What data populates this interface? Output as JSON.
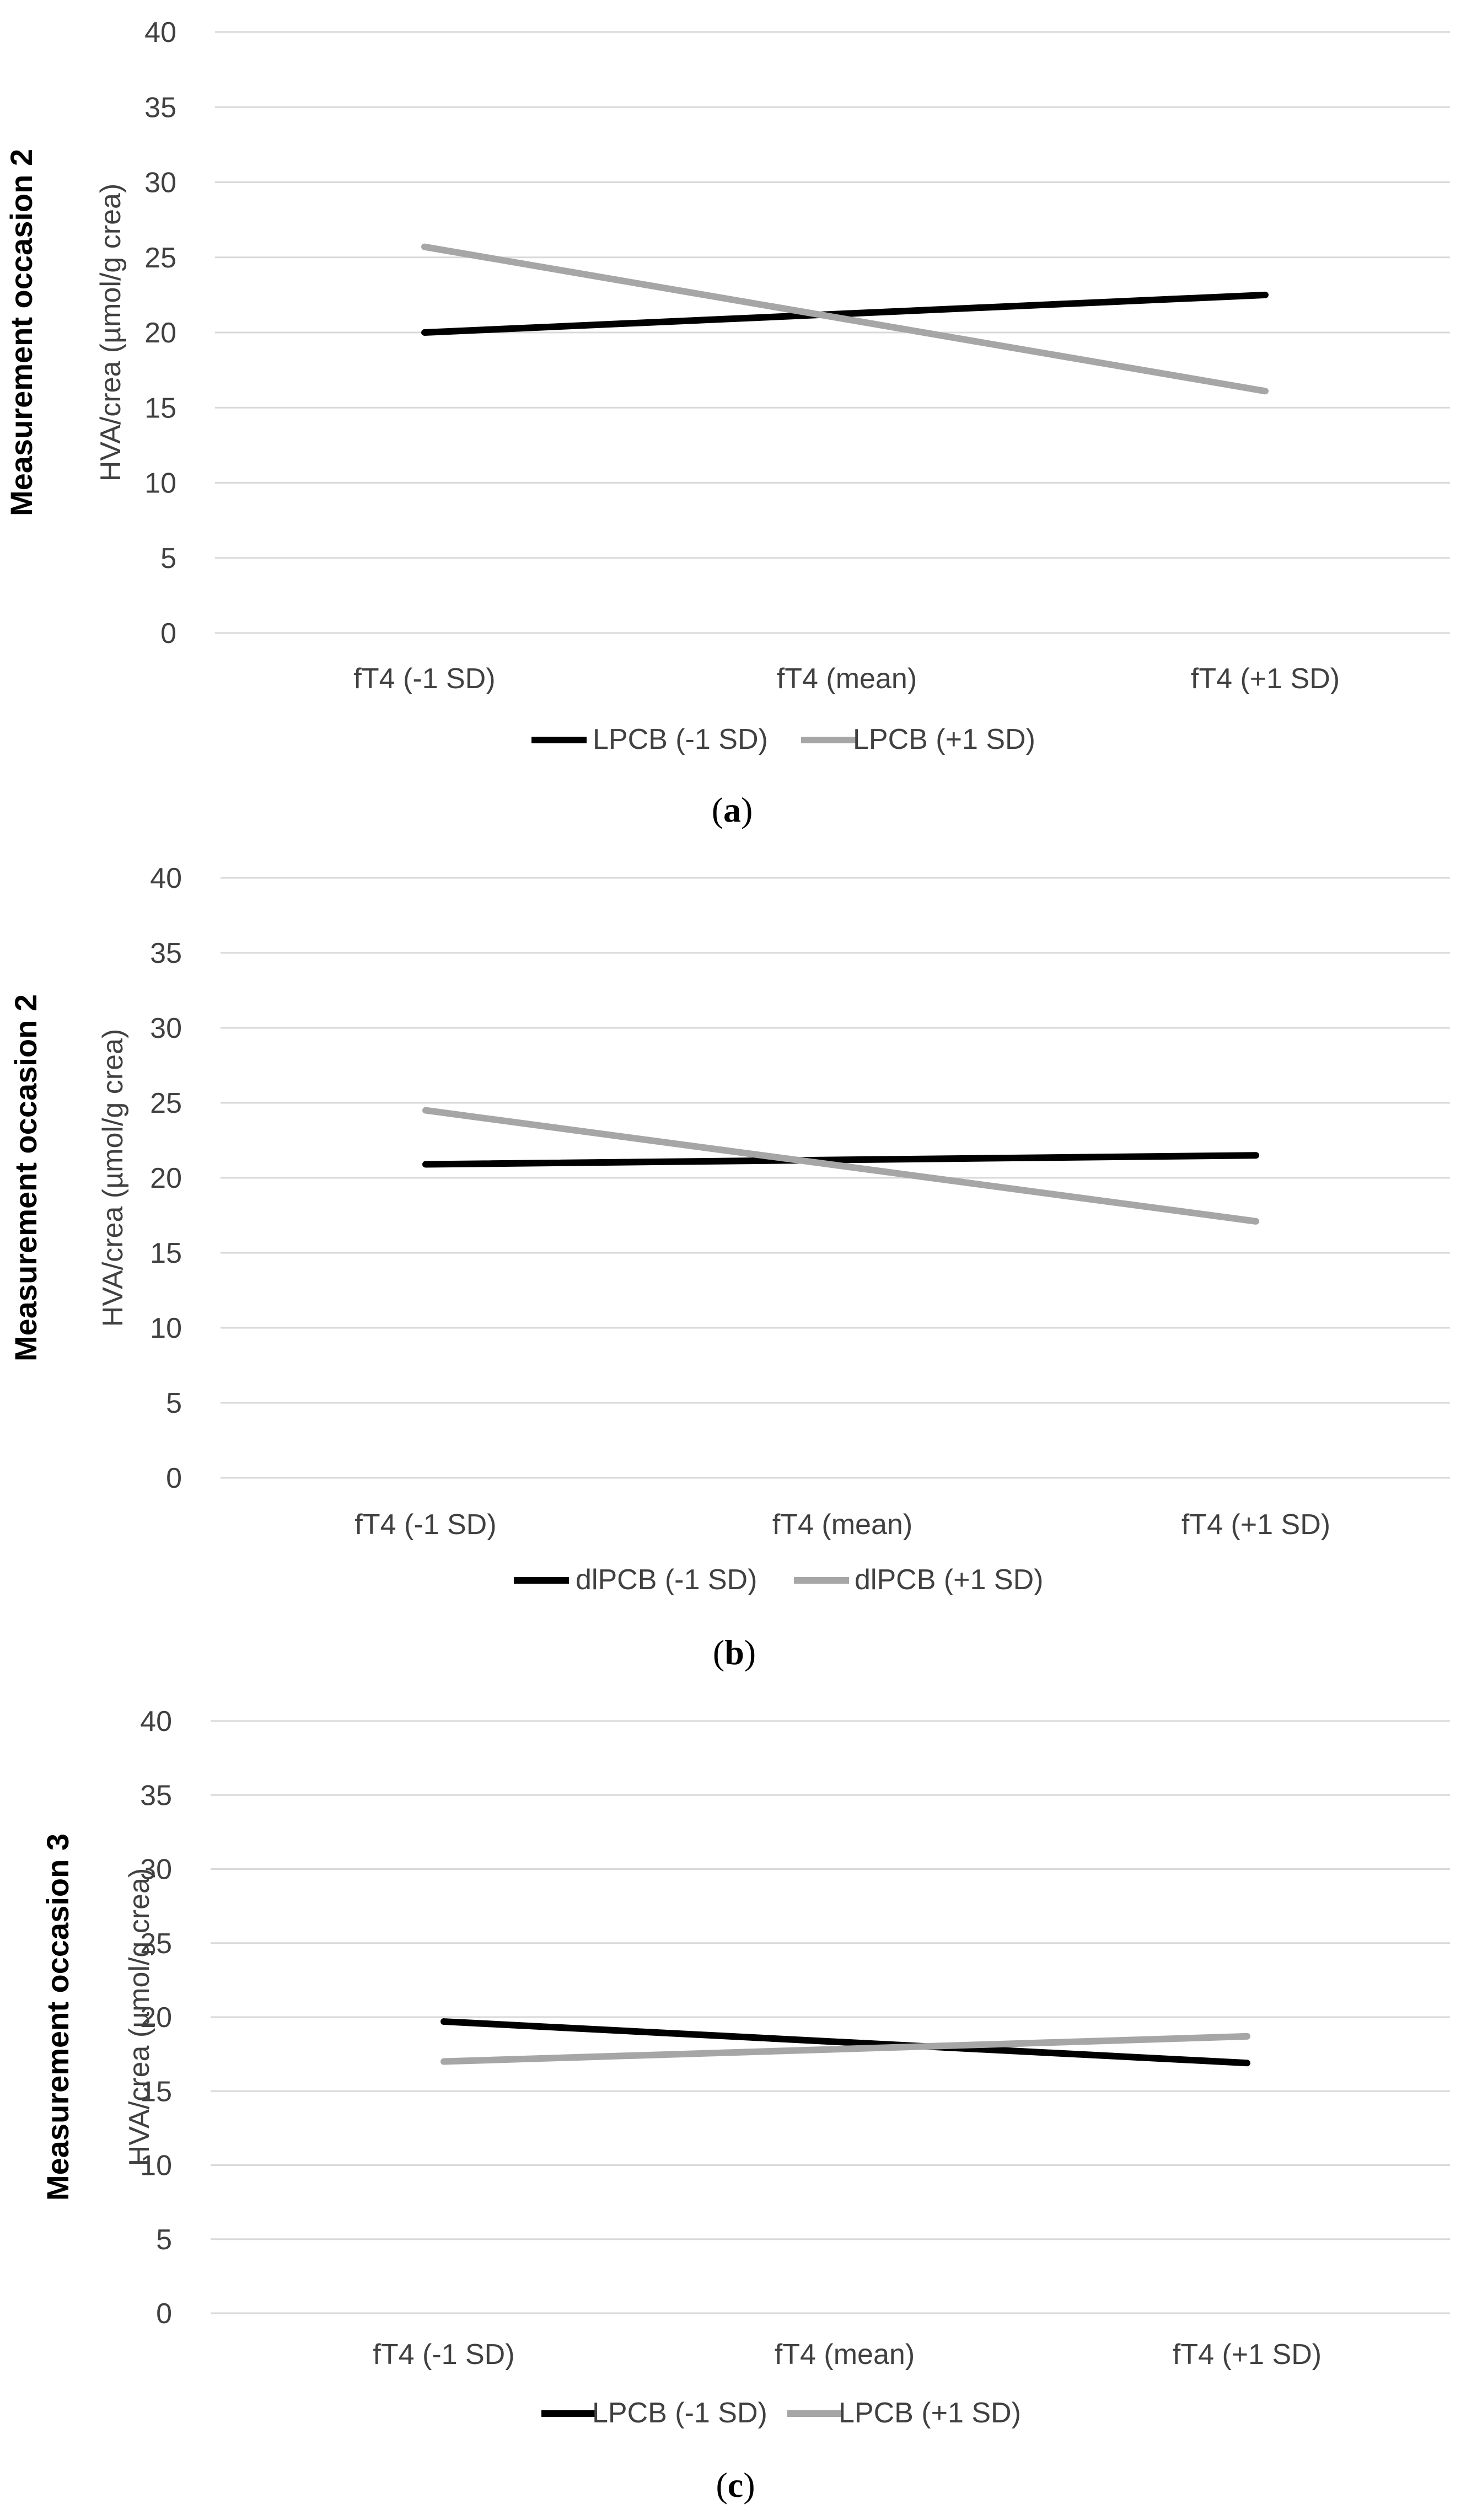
{
  "colors": {
    "series_dark": "#000000",
    "series_light": "#a6a6a6",
    "grid": "#d9d9d9",
    "text": "#404040"
  },
  "chart_data": [
    {
      "type": "line",
      "panel": "a",
      "outer_label": "Measurement occasion 2",
      "ylabel": "HVA/crea (µmol/g crea)",
      "xlabel": "",
      "categories": [
        "fT4 (-1 SD)",
        "fT4 (mean)",
        "fT4 (+1 SD)"
      ],
      "y_ticks": [
        "0",
        "5",
        "10",
        "15",
        "20",
        "25",
        "30",
        "35",
        "40"
      ],
      "ylim": [
        0,
        40
      ],
      "grid": true,
      "legend_position": "bottom",
      "series": [
        {
          "name": "LPCB (-1 SD)",
          "color": "#000000",
          "values": [
            20.0,
            null,
            22.5
          ]
        },
        {
          "name": "LPCB (+1 SD)",
          "color": "#a6a6a6",
          "values": [
            25.7,
            null,
            16.1
          ]
        }
      ],
      "caption_open": "(",
      "caption_letter": "a",
      "caption_close": ")"
    },
    {
      "type": "line",
      "panel": "b",
      "outer_label": "Measurement occasion 2",
      "ylabel": "HVA/crea (µmol/g crea)",
      "xlabel": "",
      "categories": [
        "fT4 (-1 SD)",
        "fT4 (mean)",
        "fT4 (+1 SD)"
      ],
      "y_ticks": [
        "0",
        "5",
        "10",
        "15",
        "20",
        "25",
        "30",
        "35",
        "40"
      ],
      "ylim": [
        0,
        40
      ],
      "grid": true,
      "legend_position": "bottom",
      "series": [
        {
          "name": "dlPCB (-1 SD)",
          "color": "#000000",
          "values": [
            20.9,
            null,
            21.5
          ]
        },
        {
          "name": "dlPCB (+1 SD)",
          "color": "#a6a6a6",
          "values": [
            24.5,
            null,
            17.1
          ]
        }
      ],
      "caption_open": "(",
      "caption_letter": "b",
      "caption_close": ")"
    },
    {
      "type": "line",
      "panel": "c",
      "outer_label": "Measurement occasion 3",
      "ylabel": "HVA/crea (µmol/g crea)",
      "xlabel": "",
      "categories": [
        "fT4 (-1 SD)",
        "fT4 (mean)",
        "fT4 (+1 SD)"
      ],
      "y_ticks": [
        "0",
        "5",
        "10",
        "15",
        "20",
        "25",
        "30",
        "35",
        "40"
      ],
      "ylim": [
        0,
        40
      ],
      "grid": true,
      "legend_position": "bottom",
      "series": [
        {
          "name": "LPCB (-1 SD)",
          "color": "#000000",
          "values": [
            19.7,
            null,
            16.9
          ]
        },
        {
          "name": "LPCB (+1 SD)",
          "color": "#a6a6a6",
          "values": [
            17.0,
            null,
            18.7
          ]
        }
      ],
      "caption_open": "(",
      "caption_letter": "c",
      "caption_close": ")"
    }
  ]
}
